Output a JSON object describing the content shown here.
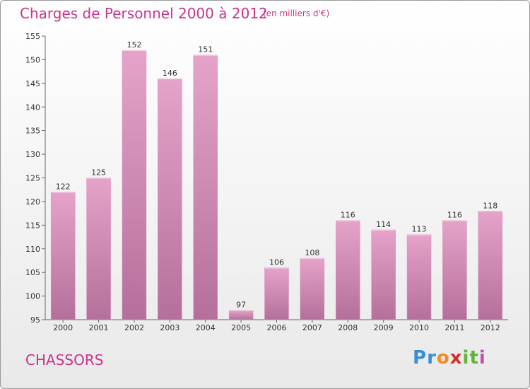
{
  "title": "Charges de Personnel 2000 à 2012",
  "subtitle": "(en milliers d'€)",
  "commune": "CHASSORS",
  "logo": {
    "letters": [
      "P",
      "r",
      "o",
      "x",
      "i",
      "t",
      "i"
    ],
    "colors": [
      "#3a8fd0",
      "#3a8fd0",
      "#f28c1c",
      "#d02f2f",
      "#5fb53b",
      "#5fb53b",
      "#c04fb0"
    ]
  },
  "colors": {
    "bar_top": "#e6a3c9",
    "bar_bottom": "#b4709a",
    "title": "#c8348a"
  },
  "chart_data": {
    "type": "bar",
    "categories": [
      "2000",
      "2001",
      "2002",
      "2003",
      "2004",
      "2005",
      "2006",
      "2007",
      "2008",
      "2009",
      "2010",
      "2011",
      "2012"
    ],
    "values": [
      122,
      125,
      152,
      146,
      151,
      97,
      106,
      108,
      116,
      114,
      113,
      116,
      118
    ],
    "ylim": [
      95,
      155
    ],
    "yticks": [
      95,
      100,
      105,
      110,
      115,
      120,
      125,
      130,
      135,
      140,
      145,
      150,
      155
    ],
    "grid": false
  }
}
